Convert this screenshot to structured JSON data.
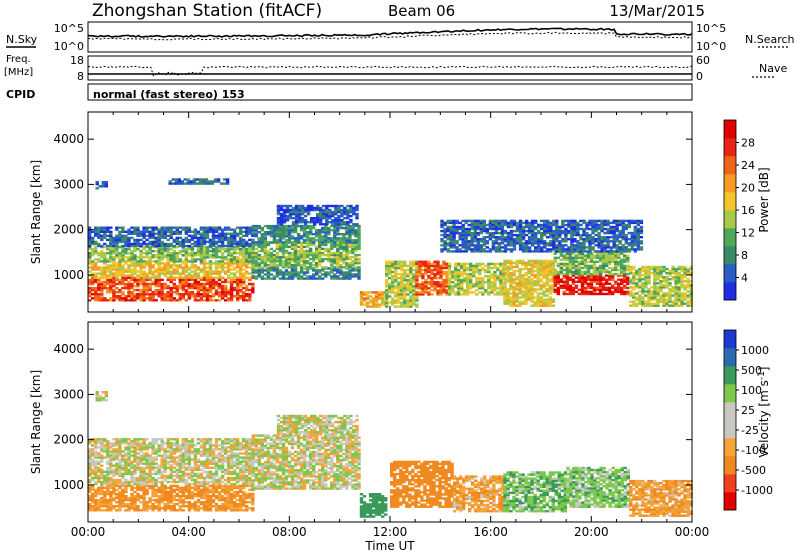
{
  "header": {
    "station": "Zhongshan Station (fitACF)",
    "beam": "Beam 06",
    "date": "13/Mar/2015"
  },
  "top_panels": {
    "nsky_label": "N.Sky",
    "nsky_ticks": [
      "10^5",
      "10^0"
    ],
    "nsearch_label": "N.Search",
    "nsearch_ticks": [
      "10^5",
      "10^0"
    ],
    "freq_label_1": "Freq.",
    "freq_label_2": "[MHz]",
    "freq_ticks": [
      "18",
      "8"
    ],
    "nave_label": "Nave",
    "nave_ticks": [
      "60",
      "0"
    ],
    "cpid_label": "CPID",
    "cpid_text": "normal (fast stereo) 153"
  },
  "x_axis": {
    "title": "Time UT",
    "ticks": [
      "00:00",
      "04:00",
      "08:00",
      "12:00",
      "16:00",
      "20:00",
      "00:00"
    ],
    "hours": [
      0,
      4,
      8,
      12,
      16,
      20,
      24
    ]
  },
  "colors": {
    "power": [
      "#1f2fe0",
      "#2a5cc8",
      "#3a8a6a",
      "#4da85a",
      "#a8c94a",
      "#f2c62a",
      "#f59a22",
      "#f06418",
      "#ea2414",
      "#e00000"
    ],
    "velocity": [
      "#e00000",
      "#f04020",
      "#f08a20",
      "#f5a43a",
      "#c8c8c0",
      "#c8c8c0",
      "#7cc84a",
      "#3a9a5a",
      "#2a6ab0",
      "#1a3ad0"
    ]
  },
  "chart_data": [
    {
      "type": "heatmap",
      "title": "Power",
      "xlabel": "",
      "ylabel": "Slant Range [km]",
      "x_unit": "hours UT",
      "xlim": [
        0,
        24
      ],
      "ylim": [
        180,
        4600
      ],
      "yticks": [
        "1000",
        "2000",
        "3000",
        "4000"
      ],
      "ytick_values": [
        1000,
        2000,
        3000,
        4000
      ],
      "colorbar_label": "Power [dB]",
      "colorbar_ticks": [
        "4",
        "8",
        "12",
        "16",
        "20",
        "24",
        "28"
      ],
      "colorbar_values": [
        4,
        8,
        12,
        16,
        20,
        24,
        28
      ],
      "clim": [
        0,
        30
      ],
      "regions": [
        {
          "t": [
            0,
            6.5
          ],
          "r": [
            420,
            920
          ],
          "v": 24
        },
        {
          "t": [
            0,
            6.5
          ],
          "r": [
            920,
            1280
          ],
          "v": 17
        },
        {
          "t": [
            0,
            6.5
          ],
          "r": [
            1280,
            1620
          ],
          "v": 12
        },
        {
          "t": [
            0,
            6.5
          ],
          "r": [
            1620,
            2050
          ],
          "v": 5
        },
        {
          "t": [
            0.3,
            0.7
          ],
          "r": [
            2850,
            3050
          ],
          "v": 6
        },
        {
          "t": [
            3.2,
            5.5
          ],
          "r": [
            3000,
            3100
          ],
          "v": 6
        },
        {
          "t": [
            6.5,
            10.7
          ],
          "r": [
            900,
            1150
          ],
          "v": 7
        },
        {
          "t": [
            6.5,
            10.7
          ],
          "r": [
            1150,
            1700
          ],
          "v": 12
        },
        {
          "t": [
            6.5,
            10.7
          ],
          "r": [
            1700,
            2100
          ],
          "v": 8
        },
        {
          "t": [
            7.5,
            10.7
          ],
          "r": [
            2100,
            2550
          ],
          "v": 4
        },
        {
          "t": [
            10.8,
            11.8
          ],
          "r": [
            280,
            600
          ],
          "v": 18
        },
        {
          "t": [
            11.8,
            13.0
          ],
          "r": [
            280,
            1300
          ],
          "v": 14
        },
        {
          "t": [
            13.0,
            14.3
          ],
          "r": [
            550,
            1300
          ],
          "v": 23
        },
        {
          "t": [
            14.3,
            16.5
          ],
          "r": [
            550,
            1250
          ],
          "v": 14
        },
        {
          "t": [
            16.5,
            18.5
          ],
          "r": [
            300,
            1300
          ],
          "v": 16
        },
        {
          "t": [
            18.5,
            21.5
          ],
          "r": [
            560,
            1000
          ],
          "v": 27
        },
        {
          "t": [
            18.5,
            21.5
          ],
          "r": [
            1000,
            1500
          ],
          "v": 12
        },
        {
          "t": [
            21.5,
            24
          ],
          "r": [
            300,
            1200
          ],
          "v": 14
        },
        {
          "t": [
            14.0,
            22.0
          ],
          "r": [
            1500,
            2200
          ],
          "v": 5
        }
      ]
    },
    {
      "type": "heatmap",
      "title": "Velocity",
      "xlabel": "Time UT",
      "ylabel": "Slant Range [km]",
      "x_unit": "hours UT",
      "xlim": [
        0,
        24
      ],
      "ylim": [
        180,
        4600
      ],
      "yticks": [
        "1000",
        "2000",
        "3000",
        "4000"
      ],
      "ytick_values": [
        1000,
        2000,
        3000,
        4000
      ],
      "colorbar_label": "Velocity [m s^-1]",
      "colorbar_ticks": [
        "1000",
        "500",
        "100",
        "25",
        "-25",
        "-100",
        "-500",
        "-1000"
      ],
      "colorbar_values": [
        1000,
        500,
        100,
        25,
        -25,
        -100,
        -500,
        -1000
      ],
      "regions": [
        {
          "t": [
            0,
            6.5
          ],
          "r": [
            420,
            1000
          ],
          "v": -120
        },
        {
          "t": [
            0,
            6.5
          ],
          "r": [
            1000,
            2000
          ],
          "v": 0
        },
        {
          "t": [
            0.3,
            0.7
          ],
          "r": [
            2850,
            3050
          ],
          "v": 0
        },
        {
          "t": [
            6.5,
            10.7
          ],
          "r": [
            900,
            2100
          ],
          "v": 0
        },
        {
          "t": [
            7.5,
            10.7
          ],
          "r": [
            2100,
            2550
          ],
          "v": 0
        },
        {
          "t": [
            10.8,
            11.8
          ],
          "r": [
            280,
            800
          ],
          "v": 200
        },
        {
          "t": [
            12.0,
            14.5
          ],
          "r": [
            500,
            1500
          ],
          "v": -300
        },
        {
          "t": [
            14.5,
            16.5
          ],
          "r": [
            400,
            1200
          ],
          "v": -80
        },
        {
          "t": [
            16.5,
            19.0
          ],
          "r": [
            400,
            1300
          ],
          "v": 80
        },
        {
          "t": [
            19.0,
            21.5
          ],
          "r": [
            500,
            1400
          ],
          "v": 60
        },
        {
          "t": [
            21.5,
            24
          ],
          "r": [
            300,
            1100
          ],
          "v": -90
        }
      ]
    }
  ]
}
